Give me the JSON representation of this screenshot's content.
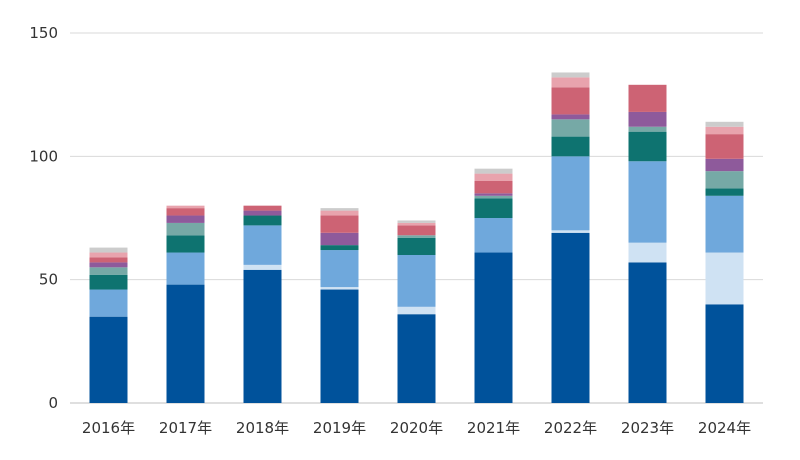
{
  "chart_data": {
    "type": "bar",
    "stacked": true,
    "title": "",
    "xlabel": "",
    "ylabel": "",
    "ylim": [
      0,
      150
    ],
    "yticks": [
      0,
      50,
      100,
      150
    ],
    "grid": true,
    "legend": "none",
    "categories": [
      "2016年",
      "2017年",
      "2018年",
      "2019年",
      "2020年",
      "2021年",
      "2022年",
      "2023年",
      "2024年"
    ],
    "series": [
      {
        "color": "#00529b",
        "values": [
          35,
          48,
          54,
          46,
          36,
          61,
          69,
          57,
          40
        ]
      },
      {
        "color": "#cfe2f3",
        "values": [
          0,
          0,
          2,
          1,
          3,
          0,
          1,
          8,
          21
        ]
      },
      {
        "color": "#6fa8dc",
        "values": [
          11,
          13,
          16,
          15,
          21,
          14,
          30,
          33,
          23
        ]
      },
      {
        "color": "#0e7370",
        "values": [
          6,
          7,
          4,
          2,
          7,
          8,
          8,
          12,
          3
        ]
      },
      {
        "color": "#76a9a6",
        "values": [
          3,
          5,
          0,
          0,
          1,
          1,
          7,
          2,
          7
        ]
      },
      {
        "color": "#8e5a9b",
        "values": [
          2,
          3,
          2,
          5,
          0,
          1,
          2,
          6,
          5
        ]
      },
      {
        "color": "#cd6374",
        "values": [
          2,
          3,
          2,
          7,
          4,
          5,
          11,
          11,
          10
        ]
      },
      {
        "color": "#e8a3ad",
        "values": [
          2,
          1,
          0,
          2,
          1,
          3,
          4,
          0,
          3
        ]
      },
      {
        "color": "#cccccc",
        "values": [
          2,
          0,
          0,
          1,
          1,
          2,
          2,
          0,
          2
        ]
      }
    ]
  }
}
